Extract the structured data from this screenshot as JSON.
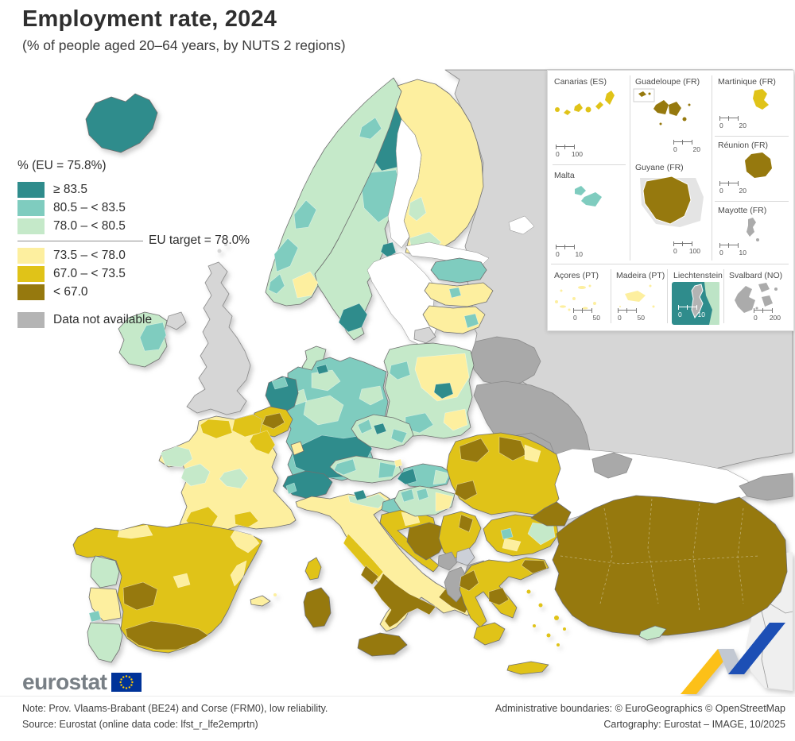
{
  "header": {
    "title": "Employment rate, 2024",
    "subtitle": "(% of people aged 20–64 years, by NUTS 2 regions)"
  },
  "legend": {
    "header": "% (EU = 75.8%)",
    "target_label": "EU target = 78.0%",
    "classes": [
      {
        "label": "≥ 83.5",
        "color": "#2f8c8c"
      },
      {
        "label": "80.5 – < 83.5",
        "color": "#7fccbf"
      },
      {
        "label": "78.0 – < 80.5",
        "color": "#c5e9c9"
      },
      {
        "label": "73.5 – < 78.0",
        "color": "#fdef9f"
      },
      {
        "label": "67.0 – < 73.5",
        "color": "#e0c318"
      },
      {
        "label": "< 67.0",
        "color": "#96790e"
      }
    ],
    "no_data": {
      "label": "Data not available",
      "color": "#b4b4b4"
    }
  },
  "map": {
    "sea_color": "#ffffff",
    "non_eu_color": "#d6d6d6",
    "candidate_color": "#a9a9a9",
    "kosovo_color": "#ccd0d8",
    "distant_land_color": "#efefef",
    "border_color": "#6f6f6f"
  },
  "insets": {
    "tiles": [
      {
        "id": "canarias",
        "label": "Canarias (ES)",
        "scale_from": "0",
        "scale_to": "100"
      },
      {
        "id": "guadeloupe",
        "label": "Guadeloupe (FR)",
        "scale_from": "0",
        "scale_to": "20"
      },
      {
        "id": "martinique",
        "label": "Martinique (FR)",
        "scale_from": "0",
        "scale_to": "20"
      },
      {
        "id": "malta",
        "label": "Malta",
        "scale_from": "0",
        "scale_to": "10"
      },
      {
        "id": "guyane",
        "label": "Guyane (FR)",
        "scale_from": "0",
        "scale_to": "100"
      },
      {
        "id": "reunion",
        "label": "Réunion (FR)",
        "scale_from": "0",
        "scale_to": "20"
      },
      {
        "id": "mayotte",
        "label": "Mayotte (FR)",
        "scale_from": "0",
        "scale_to": "10"
      },
      {
        "id": "acores",
        "label": "Açores (PT)",
        "scale_from": "0",
        "scale_to": "50"
      },
      {
        "id": "madeira",
        "label": "Madeira (PT)",
        "scale_from": "0",
        "scale_to": "50"
      },
      {
        "id": "liechtenstein",
        "label": "Liechtenstein",
        "scale_from": "0",
        "scale_to": "10"
      },
      {
        "id": "svalbard",
        "label": "Svalbard (NO)",
        "scale_from": "0",
        "scale_to": "200"
      }
    ]
  },
  "footer": {
    "logo_text": "eurostat",
    "note": "Note: Prov. Vlaams-Brabant (BE24) and Corse (FRM0), low reliability.",
    "source": "Source: Eurostat (online data code: lfst_r_lfe2emprtn)",
    "admin": "Administrative boundaries: © EuroGeographics © OpenStreetMap",
    "cartography": "Cartography: Eurostat – IMAGE, 10/2025"
  },
  "ribbon": {
    "yellow": "#fcc018",
    "gray": "#c2c8d2",
    "blue": "#1d4fb5"
  },
  "logo_flag": {
    "blue": "#003399",
    "stars": "#ffcc00"
  }
}
